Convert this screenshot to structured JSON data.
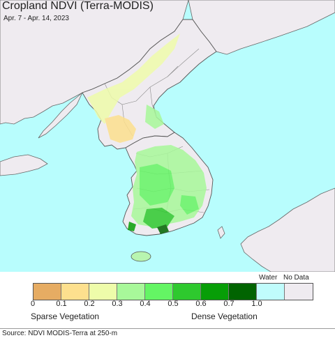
{
  "header": {
    "title": "Cropland NDVI (Terra-MODIS)",
    "subtitle": "Apr. 7 - Apr. 14, 2023"
  },
  "legend": {
    "water_label": "Water",
    "nodata_label": "No Data",
    "ticks": [
      "0",
      "0.1",
      "0.2",
      "0.3",
      "0.4",
      "0.5",
      "0.6",
      "0.7",
      "1.0"
    ],
    "sparse_label": "Sparse Vegetation",
    "dense_label": "Dense Vegetation",
    "colors": [
      "#e6ac63",
      "#fde08e",
      "#eefcaa",
      "#a8f89a",
      "#64f564",
      "#2ec92e",
      "#079e07",
      "#016401",
      "#c0fcfc",
      "#efebf0"
    ]
  },
  "footer": {
    "source": "Source: NDVI MODIS-Terra at 250-m"
  },
  "map_colors": {
    "water": "#b8fdfd",
    "land": "#efebf0",
    "boundary": "#777777"
  }
}
